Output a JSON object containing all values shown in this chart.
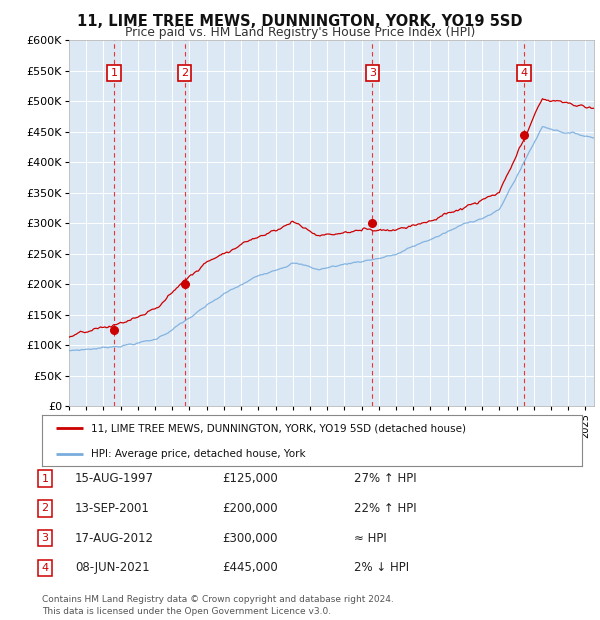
{
  "title": "11, LIME TREE MEWS, DUNNINGTON, YORK, YO19 5SD",
  "subtitle": "Price paid vs. HM Land Registry's House Price Index (HPI)",
  "background_color": "#ffffff",
  "plot_bg_color": "#dce9f5",
  "grid_color": "#ffffff",
  "ylim": [
    0,
    600000
  ],
  "yticks": [
    0,
    50000,
    100000,
    150000,
    200000,
    250000,
    300000,
    350000,
    400000,
    450000,
    500000,
    550000,
    600000
  ],
  "ytick_labels": [
    "£0",
    "£50K",
    "£100K",
    "£150K",
    "£200K",
    "£250K",
    "£300K",
    "£350K",
    "£400K",
    "£450K",
    "£500K",
    "£550K",
    "£600K"
  ],
  "xlim_start": 1995.0,
  "xlim_end": 2025.5,
  "transactions": [
    {
      "num": 1,
      "date": "15-AUG-1997",
      "price": 125000,
      "year": 1997.62,
      "hpi_relation": "27% ↑ HPI"
    },
    {
      "num": 2,
      "date": "13-SEP-2001",
      "price": 200000,
      "year": 2001.71,
      "hpi_relation": "22% ↑ HPI"
    },
    {
      "num": 3,
      "date": "17-AUG-2012",
      "price": 300000,
      "year": 2012.62,
      "hpi_relation": "≈ HPI"
    },
    {
      "num": 4,
      "date": "08-JUN-2021",
      "price": 445000,
      "year": 2021.44,
      "hpi_relation": "2% ↓ HPI"
    }
  ],
  "vline_color": "#ee3333",
  "marker_color": "#cc0000",
  "red_line_color": "#cc0000",
  "blue_line_color": "#7aaddd",
  "legend_label_red": "11, LIME TREE MEWS, DUNNINGTON, YORK, YO19 5SD (detached house)",
  "legend_label_blue": "HPI: Average price, detached house, York",
  "footer_text": "Contains HM Land Registry data © Crown copyright and database right 2024.\nThis data is licensed under the Open Government Licence v3.0.",
  "transaction_box_edge": "#cc0000"
}
